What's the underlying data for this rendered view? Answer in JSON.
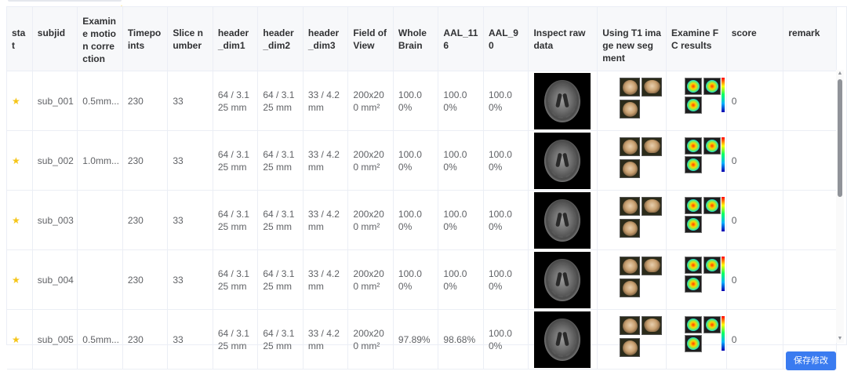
{
  "columns": [
    {
      "key": "stat",
      "label": "stat"
    },
    {
      "key": "subjid",
      "label": "subjid"
    },
    {
      "key": "motion",
      "label": "Examine motion correction"
    },
    {
      "key": "timepoints",
      "label": "Timepoints"
    },
    {
      "key": "slice",
      "label": "Slice number"
    },
    {
      "key": "dim1",
      "label": "header_dim1"
    },
    {
      "key": "dim2",
      "label": "header_dim2"
    },
    {
      "key": "dim3",
      "label": "header_dim3"
    },
    {
      "key": "fov",
      "label": "Field of View"
    },
    {
      "key": "whole",
      "label": "Whole Brain"
    },
    {
      "key": "aal116",
      "label": "AAL_116"
    },
    {
      "key": "aal90",
      "label": "AAL_90"
    },
    {
      "key": "raw",
      "label": "Inspect raw data"
    },
    {
      "key": "t1",
      "label": "Using T1 image new segment"
    },
    {
      "key": "fc",
      "label": "Examine FC results"
    },
    {
      "key": "score",
      "label": "score"
    },
    {
      "key": "remark",
      "label": "remark"
    }
  ],
  "rows": [
    {
      "stat": "★",
      "subjid": "sub_001",
      "motion": "0.5mm...",
      "timepoints": "230",
      "slice": "33",
      "dim1": "64 / 3.125 mm",
      "dim2": "64 / 3.125 mm",
      "dim3": "33 / 4.2 mm",
      "fov": "200x200 mm²",
      "whole": "100.00%",
      "aal116": "100.00%",
      "aal90": "100.00%",
      "score": "0",
      "remark": ""
    },
    {
      "stat": "★",
      "subjid": "sub_002",
      "motion": "1.0mm...",
      "timepoints": "230",
      "slice": "33",
      "dim1": "64 / 3.125 mm",
      "dim2": "64 / 3.125 mm",
      "dim3": "33 / 4.2 mm",
      "fov": "200x200 mm²",
      "whole": "100.00%",
      "aal116": "100.00%",
      "aal90": "100.00%",
      "score": "0",
      "remark": ""
    },
    {
      "stat": "★",
      "subjid": "sub_003",
      "motion": "",
      "timepoints": "230",
      "slice": "33",
      "dim1": "64 / 3.125 mm",
      "dim2": "64 / 3.125 mm",
      "dim3": "33 / 4.2 mm",
      "fov": "200x200 mm²",
      "whole": "100.00%",
      "aal116": "100.00%",
      "aal90": "100.00%",
      "score": "0",
      "remark": ""
    },
    {
      "stat": "★",
      "subjid": "sub_004",
      "motion": "",
      "timepoints": "230",
      "slice": "33",
      "dim1": "64 / 3.125 mm",
      "dim2": "64 / 3.125 mm",
      "dim3": "33 / 4.2 mm",
      "fov": "200x200 mm²",
      "whole": "100.00%",
      "aal116": "100.00%",
      "aal90": "100.00%",
      "score": "0",
      "remark": ""
    },
    {
      "stat": "★",
      "subjid": "sub_005",
      "motion": "0.5mm...",
      "timepoints": "230",
      "slice": "33",
      "dim1": "64 / 3.125 mm",
      "dim2": "64 / 3.125 mm",
      "dim3": "33 / 4.2 mm",
      "fov": "200x200 mm²",
      "whole": "97.89%",
      "aal116": "98.68%",
      "aal90": "100.00%",
      "score": "0",
      "remark": ""
    }
  ],
  "save_button": "保存修改",
  "colors": {
    "accent": "#3a7bf0",
    "star": "#f5c518",
    "header_bg": "#f7f8fa",
    "border": "#ebeef5"
  }
}
